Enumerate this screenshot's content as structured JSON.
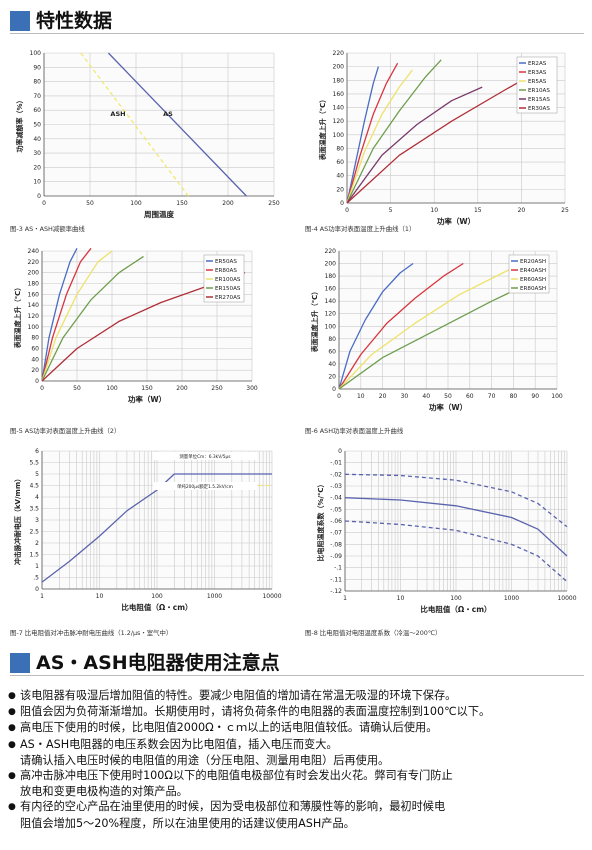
{
  "section1": {
    "title": "特性数据"
  },
  "section2": {
    "title": "AS・ASH电阻器使用注意点"
  },
  "captions": [
    "图-3 AS・ASH减额率曲线",
    "图-4 AS功率对表面温度上升曲线（1）",
    "图-5 AS功率对表面温度上升曲线（2）",
    "图-6 ASH功率对表面温度上升曲线",
    "图-7 比电阻值对冲击脉冲耐电压曲线（1.2/μs・室气中）",
    "图-8 比电阻值对电阻温度系数（冷温～200℃）"
  ],
  "notes": [
    {
      "bullet": true,
      "text": "该电阻器有吸湿后增加阻值的特性。要减少电阻值的增加请在常温无吸湿的环境下保存。"
    },
    {
      "bullet": true,
      "text": "阻值会因为负荷渐渐增加。长期使用时，请将负荷条件的电阻器的表面温度控制到100℃以下。"
    },
    {
      "bullet": true,
      "text": "高电压下使用的时候，比电阻值2000Ω・ｃｍ以上的话电阻值较低。请确认后使用。"
    },
    {
      "bullet": true,
      "text": "AS・ASH电阻器的电压系数会因为比电阻值，插入电压而变大。"
    },
    {
      "bullet": false,
      "text": "请确认插入电压时候的电阻值的用途（分压电阻、测量用电阻）后再使用。"
    },
    {
      "bullet": true,
      "text": "高冲击脉冲电压下使用时100Ω以下的电阻值电极部位有时会发出火花。弊司有专门防止"
    },
    {
      "bullet": false,
      "text": "放电和变更电极构造的对策产品。"
    },
    {
      "bullet": true,
      "text": "有内径的空心产品在油里使用的时候，因为受电极部位和薄膜性等的影响，最初时候电"
    },
    {
      "bullet": false,
      "text": "阻值会增加5～20%程度，所以在油里使用的话建议使用ASH产品。"
    }
  ],
  "chart_data": [
    {
      "type": "line",
      "xlabel": "周围温度",
      "ylabel": "功率减额率（%）",
      "xlim": [
        0,
        250
      ],
      "ylim": [
        0,
        100
      ],
      "xticks": [
        0,
        50,
        100,
        150,
        200,
        250
      ],
      "yticks": [
        0,
        10,
        20,
        30,
        40,
        50,
        60,
        70,
        80,
        90,
        100
      ],
      "grid": true,
      "annotations": [
        "ASH",
        "AS"
      ],
      "series": [
        {
          "name": "",
          "color": "#f2e86a",
          "dash": true,
          "x": [
            40,
            157
          ],
          "y": [
            100,
            0
          ]
        },
        {
          "name": "",
          "color": "#5a63ad",
          "dash": false,
          "x": [
            70,
            220
          ],
          "y": [
            100,
            0
          ]
        }
      ]
    },
    {
      "type": "line",
      "xlabel": "功率（W）",
      "ylabel": "表面温度上升（℃）",
      "xlim": [
        0,
        25
      ],
      "ylim": [
        0,
        220
      ],
      "xticks": [
        0,
        5,
        10,
        15,
        20,
        25
      ],
      "yticks": [
        0,
        20,
        40,
        60,
        80,
        100,
        120,
        140,
        160,
        180,
        200,
        220
      ],
      "grid": true,
      "legend": "top-right",
      "series": [
        {
          "name": "ER2AS",
          "color": "#4a6cc4",
          "x": [
            0,
            1,
            2,
            3,
            3.6
          ],
          "y": [
            0,
            60,
            120,
            175,
            200
          ]
        },
        {
          "name": "ER3AS",
          "color": "#d8343e",
          "x": [
            0,
            1.5,
            3,
            4.5,
            5.8
          ],
          "y": [
            0,
            70,
            130,
            175,
            205
          ]
        },
        {
          "name": "ER5AS",
          "color": "#eee26a",
          "x": [
            0,
            2,
            4,
            6,
            7.5
          ],
          "y": [
            0,
            75,
            130,
            170,
            195
          ]
        },
        {
          "name": "ER10AS",
          "color": "#6e9e4c",
          "x": [
            0,
            3,
            6,
            9,
            10.8
          ],
          "y": [
            0,
            80,
            135,
            185,
            210
          ]
        },
        {
          "name": "ER15AS",
          "color": "#7a3a6a",
          "x": [
            0,
            4,
            8,
            12,
            15.5
          ],
          "y": [
            0,
            70,
            115,
            150,
            170
          ]
        },
        {
          "name": "ER30AS",
          "color": "#b02f38",
          "x": [
            0,
            6,
            12,
            18,
            23.5
          ],
          "y": [
            0,
            70,
            120,
            165,
            205
          ]
        }
      ]
    },
    {
      "type": "line",
      "xlabel": "功率（W）",
      "ylabel": "表面温度上升（℃）",
      "xlim": [
        0,
        300
      ],
      "ylim": [
        0,
        240
      ],
      "xticks": [
        0,
        50,
        100,
        150,
        200,
        250,
        300
      ],
      "yticks": [
        0,
        20,
        40,
        60,
        80,
        100,
        120,
        140,
        160,
        180,
        200,
        220,
        240
      ],
      "grid": true,
      "legend": "top-right",
      "series": [
        {
          "name": "ER50AS",
          "color": "#4a6cc4",
          "x": [
            0,
            10,
            25,
            40,
            50
          ],
          "y": [
            0,
            80,
            160,
            220,
            245
          ]
        },
        {
          "name": "ER80AS",
          "color": "#d8343e",
          "x": [
            0,
            15,
            35,
            55,
            70
          ],
          "y": [
            0,
            80,
            160,
            220,
            245
          ]
        },
        {
          "name": "ER100AS",
          "color": "#eee26a",
          "x": [
            0,
            20,
            50,
            80,
            100
          ],
          "y": [
            0,
            80,
            160,
            220,
            240
          ]
        },
        {
          "name": "ER150AS",
          "color": "#6e9e4c",
          "x": [
            0,
            30,
            70,
            110,
            145
          ],
          "y": [
            0,
            80,
            150,
            200,
            230
          ]
        },
        {
          "name": "ER270AS",
          "color": "#b02f38",
          "x": [
            0,
            50,
            110,
            170,
            225,
            290
          ],
          "y": [
            0,
            60,
            110,
            145,
            170,
            200
          ]
        }
      ]
    },
    {
      "type": "line",
      "xlabel": "功率（W）",
      "ylabel": "表面温度上升（℃）",
      "xlim": [
        0,
        100
      ],
      "ylim": [
        0,
        220
      ],
      "xticks": [
        0,
        10,
        20,
        30,
        40,
        50,
        60,
        70,
        80,
        90,
        100
      ],
      "yticks": [
        0,
        20,
        40,
        60,
        80,
        100,
        120,
        140,
        160,
        180,
        200,
        220
      ],
      "grid": true,
      "legend": "top-right",
      "series": [
        {
          "name": "ER20ASH",
          "color": "#4a6cc4",
          "x": [
            0,
            5,
            12,
            20,
            28,
            34
          ],
          "y": [
            0,
            60,
            110,
            155,
            185,
            200
          ]
        },
        {
          "name": "ER40ASH",
          "color": "#d8343e",
          "x": [
            0,
            10,
            22,
            35,
            48,
            57
          ],
          "y": [
            0,
            55,
            105,
            145,
            180,
            200
          ]
        },
        {
          "name": "ER60ASH",
          "color": "#eee26a",
          "x": [
            0,
            15,
            35,
            55,
            75,
            84
          ],
          "y": [
            0,
            55,
            105,
            150,
            185,
            200
          ]
        },
        {
          "name": "ER80ASH",
          "color": "#6e9e4c",
          "x": [
            0,
            20,
            45,
            70,
            88,
            95
          ],
          "y": [
            0,
            50,
            95,
            140,
            170,
            180
          ]
        }
      ]
    },
    {
      "type": "line",
      "xlabel": "比电阻值（Ω・cm）",
      "ylabel": "冲击脉冲耐电压（kV/mm）",
      "xscale": "log",
      "xlim": [
        1,
        10000
      ],
      "ylim": [
        0,
        6
      ],
      "xticks": [
        1,
        10,
        100,
        1000,
        10000
      ],
      "yticks": [
        0,
        0.5,
        1,
        1.5,
        2,
        2.5,
        3,
        3.5,
        4,
        4.5,
        5,
        5.5,
        6
      ],
      "grid": true,
      "annotations": [
        "测量单位Cm：6.3kV/5μs",
        "单纯200μs额定1.5.2kV/cm"
      ],
      "series": [
        {
          "name": "",
          "color": "#5a63ad",
          "dash": false,
          "x": [
            1,
            3,
            10,
            30,
            100,
            200,
            1000,
            10000
          ],
          "y": [
            0.3,
            1.2,
            2.3,
            3.4,
            4.3,
            5.0,
            5.0,
            5.0
          ]
        },
        {
          "name": "",
          "color": "#f2e86a",
          "dash": true,
          "x": [
            200,
            10000
          ],
          "y": [
            4.5,
            4.5
          ]
        }
      ]
    },
    {
      "type": "line",
      "xlabel": "比电阻值（Ω・cm）",
      "ylabel": "比电阻温度系数（%/℃）",
      "xscale": "log",
      "xlim": [
        1,
        10000
      ],
      "ylim": [
        -0.12,
        0
      ],
      "xticks": [
        1,
        10,
        100,
        1000,
        10000
      ],
      "yticks": [
        0,
        -0.01,
        -0.02,
        -0.03,
        -0.04,
        -0.05,
        -0.06,
        -0.07,
        -0.08,
        -0.09,
        -0.1,
        -0.11,
        -0.12
      ],
      "grid": true,
      "series": [
        {
          "name": "",
          "color": "#5a63ad",
          "dash": true,
          "x": [
            1,
            10,
            100,
            1000,
            3000,
            10000
          ],
          "y": [
            -0.02,
            -0.021,
            -0.025,
            -0.035,
            -0.045,
            -0.065
          ]
        },
        {
          "name": "",
          "color": "#5a63ad",
          "dash": false,
          "x": [
            1,
            10,
            100,
            1000,
            3000,
            10000
          ],
          "y": [
            -0.04,
            -0.042,
            -0.047,
            -0.057,
            -0.067,
            -0.09
          ]
        },
        {
          "name": "",
          "color": "#5a63ad",
          "dash": true,
          "x": [
            1,
            10,
            100,
            1000,
            3000,
            10000
          ],
          "y": [
            -0.06,
            -0.063,
            -0.068,
            -0.08,
            -0.09,
            -0.112
          ]
        }
      ]
    }
  ]
}
